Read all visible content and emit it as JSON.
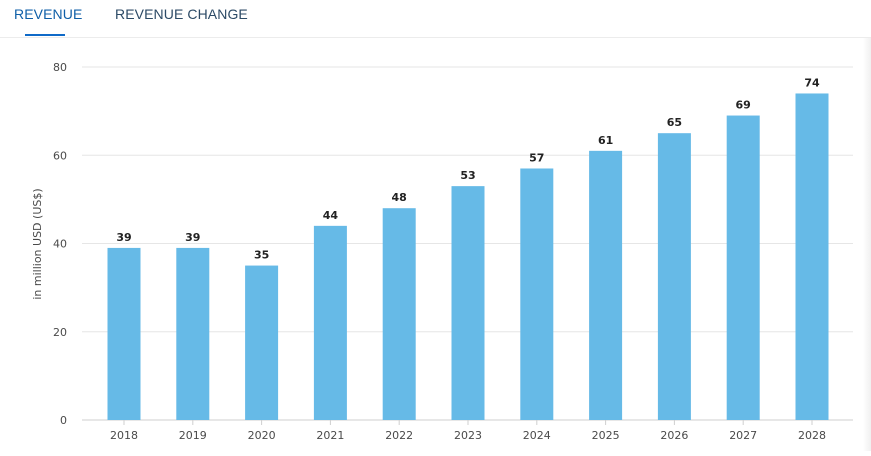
{
  "tabs": [
    {
      "label": "REVENUE",
      "active": true
    },
    {
      "label": "REVENUE CHANGE",
      "active": false
    }
  ],
  "colors": {
    "bar": "#66bae7",
    "grid": "#e6e6e6",
    "active_tab": "#0f5fa8",
    "axis_text": "#4a4a4a"
  },
  "chart_data": {
    "type": "bar",
    "title": "",
    "xlabel": "",
    "ylabel": "in million USD (US$)",
    "ylim": [
      0,
      80
    ],
    "yticks": [
      0,
      20,
      40,
      60,
      80
    ],
    "categories": [
      "2018",
      "2019",
      "2020",
      "2021",
      "2022",
      "2023",
      "2024",
      "2025",
      "2026",
      "2027",
      "2028"
    ],
    "values": [
      39,
      39,
      35,
      44,
      48,
      53,
      57,
      61,
      65,
      69,
      74
    ],
    "data_labels": [
      "39",
      "39",
      "35",
      "44",
      "48",
      "53",
      "57",
      "61",
      "65",
      "69",
      "74"
    ]
  }
}
